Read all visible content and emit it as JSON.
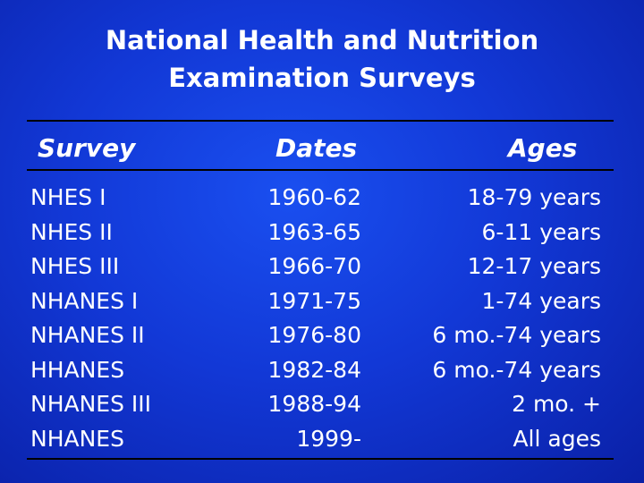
{
  "title": {
    "line1": "National Health and Nutrition",
    "line2": "Examination Surveys"
  },
  "headers": {
    "survey": "Survey",
    "dates": "Dates",
    "ages": "Ages"
  },
  "rows": [
    {
      "survey": "NHES I",
      "dates": "1960-62",
      "ages": "18-79 years"
    },
    {
      "survey": "NHES II",
      "dates": "1963-65",
      "ages": "6-11 years"
    },
    {
      "survey": "NHES III",
      "dates": "1966-70",
      "ages": "12-17 years"
    },
    {
      "survey": "NHANES I",
      "dates": "1971-75",
      "ages": "1-74 years"
    },
    {
      "survey": "NHANES II",
      "dates": "1976-80",
      "ages": "6 mo.-74 years"
    },
    {
      "survey": "HHANES",
      "dates": "1982-84",
      "ages": "6 mo.-74 years"
    },
    {
      "survey": "NHANES III",
      "dates": "1988-94",
      "ages": "2 mo. +"
    },
    {
      "survey": "NHANES",
      "dates": "1999-",
      "ages": "All ages"
    }
  ]
}
